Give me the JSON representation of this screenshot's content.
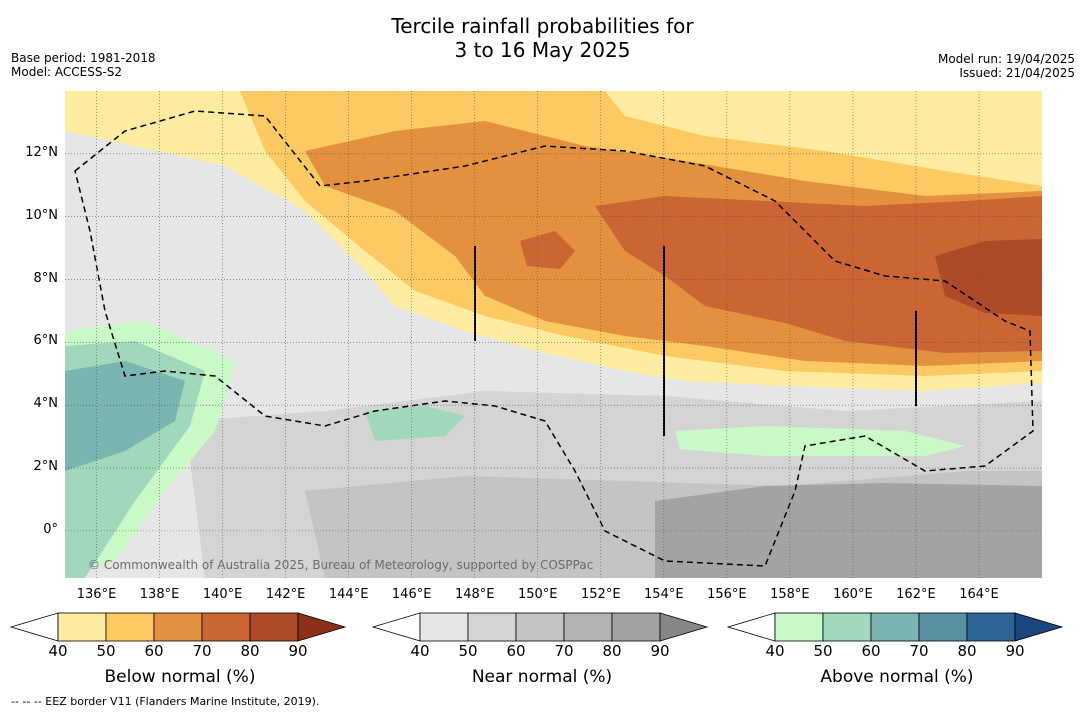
{
  "title_line1": "Tercile rainfall probabilities for",
  "title_line2": "3 to 16 May 2025",
  "base_period": "Base period: 1981-2018",
  "model": "Model: ACCESS-S2",
  "model_run": "Model run: 19/04/2025",
  "issued": "Issued: 21/04/2025",
  "copyright": "© Commonwealth of Australia 2025, Bureau of Meteorology, supported by COSPPac",
  "footnote": "--  --  -- EEZ border V11 (Flanders Marine Institute, 2019).",
  "map": {
    "lon_range": [
      135,
      166
    ],
    "lat_range": [
      -1.5,
      14
    ],
    "lon_labels": [
      "136°E",
      "138°E",
      "140°E",
      "142°E",
      "144°E",
      "146°E",
      "148°E",
      "150°E",
      "152°E",
      "154°E",
      "156°E",
      "158°E",
      "160°E",
      "162°E",
      "164°E"
    ],
    "lat_labels": [
      "0°",
      "2°N",
      "4°N",
      "6°N",
      "8°N",
      "10°N",
      "12°N"
    ],
    "gridlines": true
  },
  "colorbars": [
    {
      "name": "below",
      "title": "Below normal (%)",
      "ticks": [
        "40",
        "50",
        "60",
        "70",
        "80",
        "90"
      ],
      "colors": [
        "#ffffff",
        "#feeda0",
        "#fdc963",
        "#e3913e",
        "#cc6534",
        "#ad4a27",
        "#8a3118"
      ]
    },
    {
      "name": "near",
      "title": "Near normal (%)",
      "ticks": [
        "40",
        "50",
        "60",
        "70",
        "80",
        "90"
      ],
      "colors": [
        "#ffffff",
        "#e6e6e6",
        "#d4d4d4",
        "#c4c4c4",
        "#b3b3b3",
        "#a3a3a3",
        "#878787"
      ]
    },
    {
      "name": "above",
      "title": "Above normal (%)",
      "ticks": [
        "40",
        "50",
        "60",
        "70",
        "80",
        "90"
      ],
      "colors": [
        "#ffffff",
        "#c8f9c7",
        "#a1d7ba",
        "#7ab5b1",
        "#5a92a3",
        "#2e6396",
        "#1b4680"
      ]
    }
  ]
}
